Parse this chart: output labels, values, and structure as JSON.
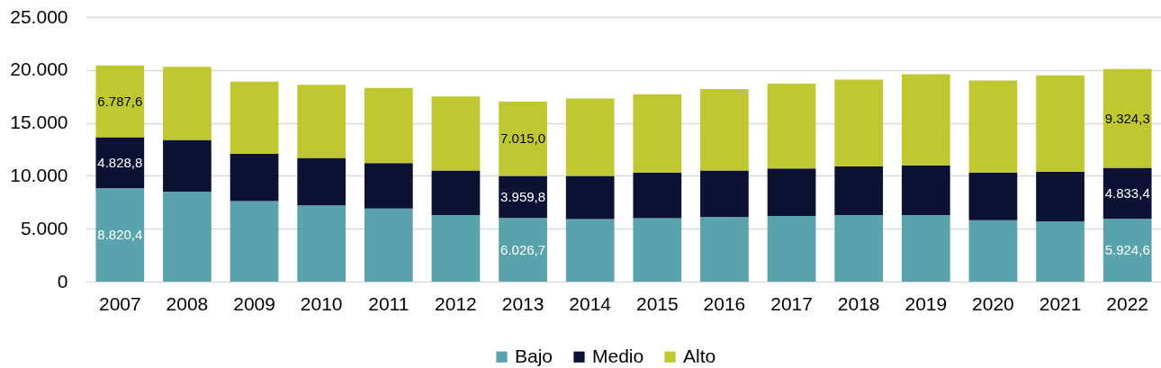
{
  "chart_data": {
    "type": "bar",
    "stacked": true,
    "categories": [
      "2007",
      "2008",
      "2009",
      "2010",
      "2011",
      "2012",
      "2013",
      "2014",
      "2015",
      "2016",
      "2017",
      "2018",
      "2019",
      "2020",
      "2021",
      "2022"
    ],
    "series": [
      {
        "name": "Bajo",
        "color": "#5aa3ac",
        "values": [
          8820.4,
          8500,
          7600,
          7200,
          6900,
          6300,
          6026.7,
          5900,
          6000,
          6100,
          6200,
          6300,
          6300,
          5800,
          5700,
          5924.6
        ],
        "value_labels": [
          "8.820,4",
          null,
          null,
          null,
          null,
          null,
          "6.026,7",
          null,
          null,
          null,
          null,
          null,
          null,
          null,
          null,
          "5.924,6"
        ]
      },
      {
        "name": "Medio",
        "color": "#0d1235",
        "values": [
          4828.8,
          4900,
          4500,
          4500,
          4300,
          4200,
          3959.8,
          4100,
          4300,
          4400,
          4500,
          4600,
          4700,
          4500,
          4700,
          4833.4
        ],
        "value_labels": [
          "4.828,8",
          null,
          null,
          null,
          null,
          null,
          "3.959,8",
          null,
          null,
          null,
          null,
          null,
          null,
          null,
          null,
          "4.833,4"
        ]
      },
      {
        "name": "Alto",
        "color": "#bfc830",
        "values": [
          6787.6,
          6900,
          6800,
          6900,
          7100,
          7000,
          7015.0,
          7300,
          7400,
          7700,
          8000,
          8200,
          8600,
          8700,
          9100,
          9324.3
        ],
        "value_labels": [
          "6.787,6",
          null,
          null,
          null,
          null,
          null,
          "7.015,0",
          null,
          null,
          null,
          null,
          null,
          null,
          null,
          null,
          "9.324,3"
        ]
      }
    ],
    "ylim": [
      0,
      25000
    ],
    "yticks": [
      0,
      {
        "value": 5000,
        "label": "5.000"
      },
      {
        "value": 10000,
        "label": "10.000"
      },
      {
        "value": 15000,
        "label": "15.000"
      },
      {
        "value": 20000,
        "label": "20.000"
      },
      {
        "value": 25000,
        "label": "25.000"
      }
    ],
    "grid": "y",
    "legend": "bottom"
  }
}
